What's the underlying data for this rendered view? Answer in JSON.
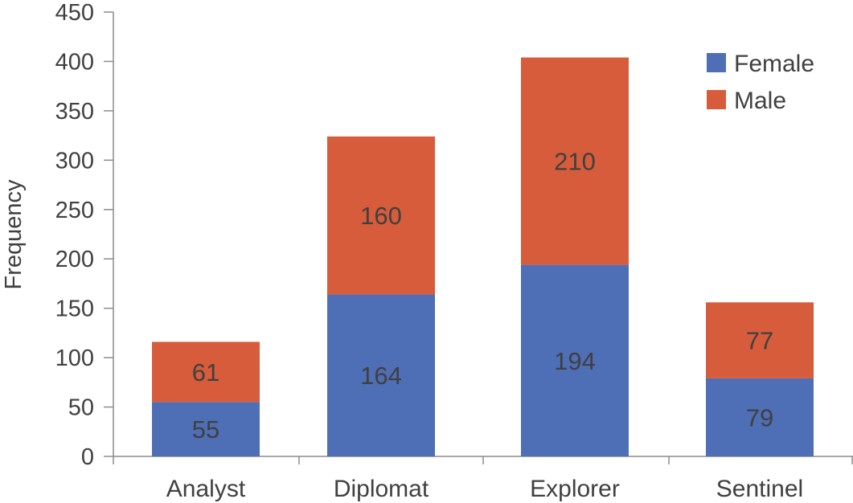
{
  "chart_data": {
    "type": "bar",
    "stacked": true,
    "categories": [
      "Analyst",
      "Diplomat",
      "Explorer",
      "Sentinel"
    ],
    "series": [
      {
        "name": "Female",
        "values": [
          55,
          164,
          194,
          79
        ],
        "color": "#4e6eb6"
      },
      {
        "name": "Male",
        "values": [
          61,
          160,
          210,
          77
        ],
        "color": "#d75c3b"
      }
    ],
    "ylabel": "Frequency",
    "ylim": [
      0,
      450
    ],
    "yticks": [
      "0",
      "50",
      "100",
      "150",
      "200",
      "250",
      "300",
      "350",
      "400",
      "450"
    ],
    "grid": false,
    "legend_position": "top-right",
    "data_labels": true
  }
}
